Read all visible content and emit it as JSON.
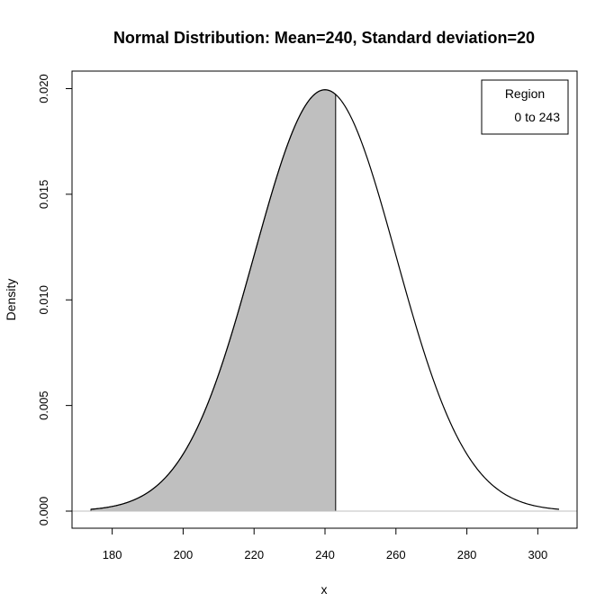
{
  "chart_data": {
    "type": "area",
    "title": "Normal Distribution:  Mean=240, Standard deviation=20",
    "xlabel": "x",
    "ylabel": "Density",
    "mean": 240,
    "sd": 20,
    "xlim": [
      174,
      306
    ],
    "ylim": [
      0,
      0.02
    ],
    "x_ticks": [
      "180",
      "200",
      "220",
      "240",
      "260",
      "280",
      "300"
    ],
    "y_ticks": [
      "0.000",
      "0.005",
      "0.010",
      "0.015",
      "0.020"
    ],
    "shaded_region": {
      "from": 0,
      "to": 243,
      "fill": "#bfbfbf"
    },
    "curve_color": "#000000",
    "baseline_color": "#bfbfbf",
    "legend": {
      "title": "Region",
      "entries": [
        "0 to 243"
      ],
      "placement": "top-right"
    },
    "grid": false
  }
}
